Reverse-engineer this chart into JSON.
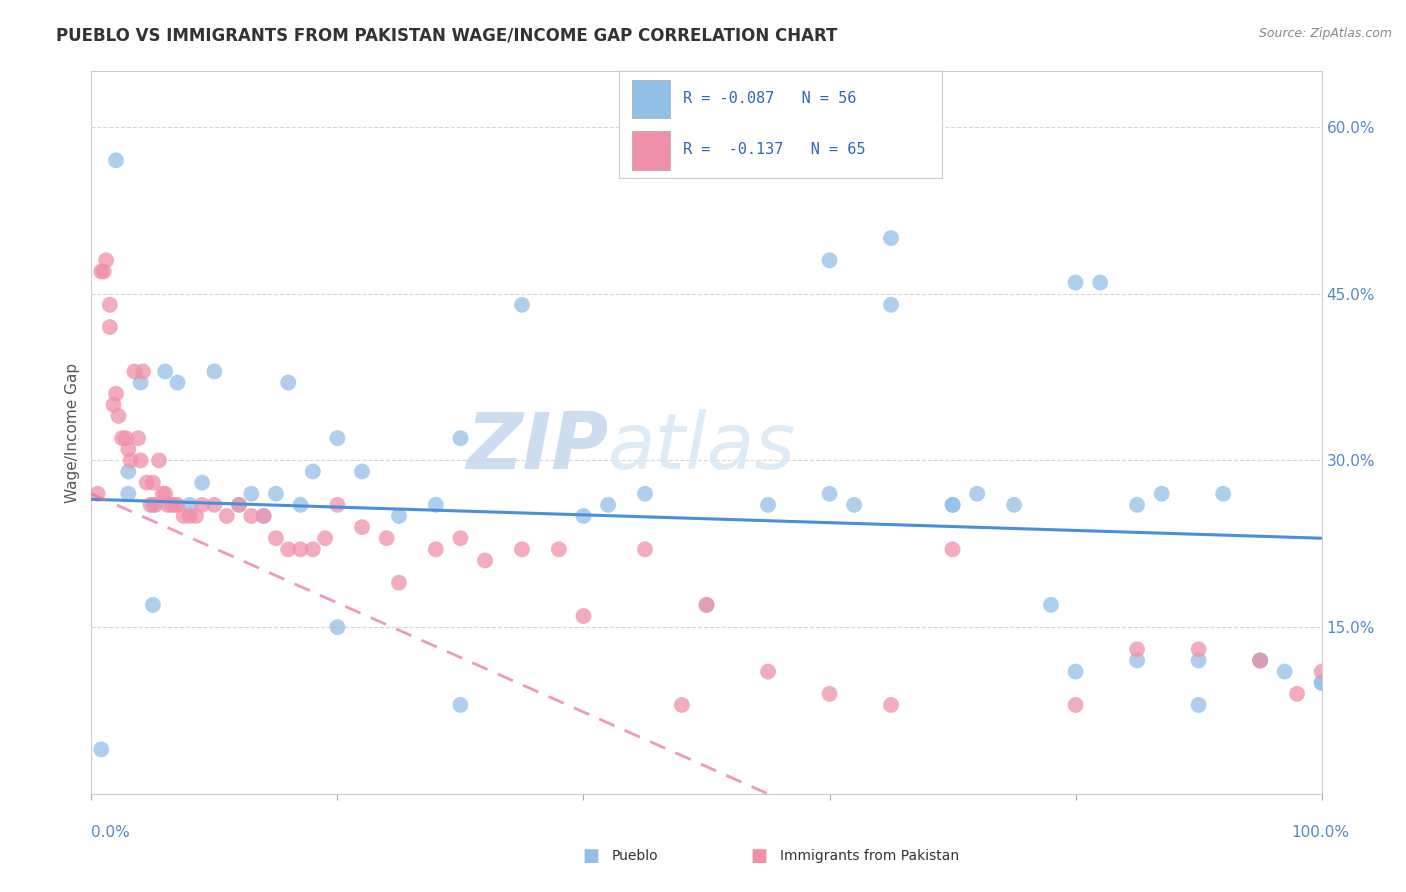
{
  "title": "PUEBLO VS IMMIGRANTS FROM PAKISTAN WAGE/INCOME GAP CORRELATION CHART",
  "source": "Source: ZipAtlas.com",
  "ylabel": "Wage/Income Gap",
  "watermark_zip": "ZIP",
  "watermark_atlas": "atlas",
  "legend_blue_label": "R = -0.087   N = 56",
  "legend_pink_label": "R =  -0.137   N = 65",
  "bottom_legend_pueblo": "Pueblo",
  "bottom_legend_pakistan": "Immigrants from Pakistan",
  "pueblo_color": "#92bfe8",
  "pakistan_color": "#f090a8",
  "pueblo_trend_color": "#4a90d9",
  "pakistan_trend_color": "#e87090",
  "pueblo_scatter_x": [
    0.008,
    0.02,
    0.03,
    0.03,
    0.04,
    0.05,
    0.06,
    0.07,
    0.08,
    0.09,
    0.1,
    0.12,
    0.13,
    0.14,
    0.15,
    0.16,
    0.17,
    0.18,
    0.2,
    0.22,
    0.25,
    0.28,
    0.3,
    0.35,
    0.4,
    0.42,
    0.45,
    0.5,
    0.55,
    0.6,
    0.62,
    0.65,
    0.7,
    0.72,
    0.75,
    0.78,
    0.8,
    0.82,
    0.85,
    0.87,
    0.9,
    0.92,
    0.95,
    0.97,
    1.0,
    0.6,
    0.65,
    0.7,
    0.8,
    0.85,
    0.9,
    0.95,
    1.0,
    0.05,
    0.2,
    0.3
  ],
  "pueblo_scatter_y": [
    0.04,
    0.57,
    0.27,
    0.29,
    0.37,
    0.26,
    0.38,
    0.37,
    0.26,
    0.28,
    0.38,
    0.26,
    0.27,
    0.25,
    0.27,
    0.37,
    0.26,
    0.29,
    0.32,
    0.29,
    0.25,
    0.26,
    0.32,
    0.44,
    0.25,
    0.26,
    0.27,
    0.17,
    0.26,
    0.48,
    0.26,
    0.5,
    0.26,
    0.27,
    0.26,
    0.17,
    0.46,
    0.46,
    0.26,
    0.27,
    0.12,
    0.27,
    0.12,
    0.11,
    0.1,
    0.27,
    0.44,
    0.26,
    0.11,
    0.12,
    0.08,
    0.12,
    0.1,
    0.17,
    0.15,
    0.08
  ],
  "pakistan_scatter_x": [
    0.005,
    0.008,
    0.01,
    0.012,
    0.015,
    0.015,
    0.018,
    0.02,
    0.022,
    0.025,
    0.028,
    0.03,
    0.032,
    0.035,
    0.038,
    0.04,
    0.042,
    0.045,
    0.048,
    0.05,
    0.052,
    0.055,
    0.058,
    0.06,
    0.062,
    0.065,
    0.068,
    0.07,
    0.075,
    0.08,
    0.085,
    0.09,
    0.1,
    0.11,
    0.12,
    0.13,
    0.14,
    0.15,
    0.16,
    0.17,
    0.18,
    0.19,
    0.2,
    0.22,
    0.24,
    0.25,
    0.28,
    0.3,
    0.32,
    0.35,
    0.38,
    0.4,
    0.45,
    0.48,
    0.5,
    0.55,
    0.6,
    0.65,
    0.7,
    0.8,
    0.85,
    0.9,
    0.95,
    0.98,
    1.0
  ],
  "pakistan_scatter_y": [
    0.27,
    0.47,
    0.47,
    0.48,
    0.42,
    0.44,
    0.35,
    0.36,
    0.34,
    0.32,
    0.32,
    0.31,
    0.3,
    0.38,
    0.32,
    0.3,
    0.38,
    0.28,
    0.26,
    0.28,
    0.26,
    0.3,
    0.27,
    0.27,
    0.26,
    0.26,
    0.26,
    0.26,
    0.25,
    0.25,
    0.25,
    0.26,
    0.26,
    0.25,
    0.26,
    0.25,
    0.25,
    0.23,
    0.22,
    0.22,
    0.22,
    0.23,
    0.26,
    0.24,
    0.23,
    0.19,
    0.22,
    0.23,
    0.21,
    0.22,
    0.22,
    0.16,
    0.22,
    0.08,
    0.17,
    0.11,
    0.09,
    0.08,
    0.22,
    0.08,
    0.13,
    0.13,
    0.12,
    0.09,
    0.11
  ],
  "pueblo_trend_x": [
    0.0,
    1.0
  ],
  "pueblo_trend_y": [
    0.265,
    0.23
  ],
  "pakistan_trend_x": [
    0.0,
    0.55
  ],
  "pakistan_trend_y": [
    0.27,
    0.0
  ],
  "xlim": [
    0.0,
    1.0
  ],
  "ylim": [
    0.0,
    0.65
  ],
  "yticks": [
    0.15,
    0.3,
    0.45,
    0.6
  ],
  "ytick_labels": [
    "15.0%",
    "30.0%",
    "45.0%",
    "60.0%"
  ],
  "xtick_positions": [
    0.0,
    0.2,
    0.4,
    0.6,
    0.8,
    1.0
  ],
  "background_color": "#ffffff",
  "title_fontsize": 12,
  "title_color": "#333333",
  "source_fontsize": 9
}
